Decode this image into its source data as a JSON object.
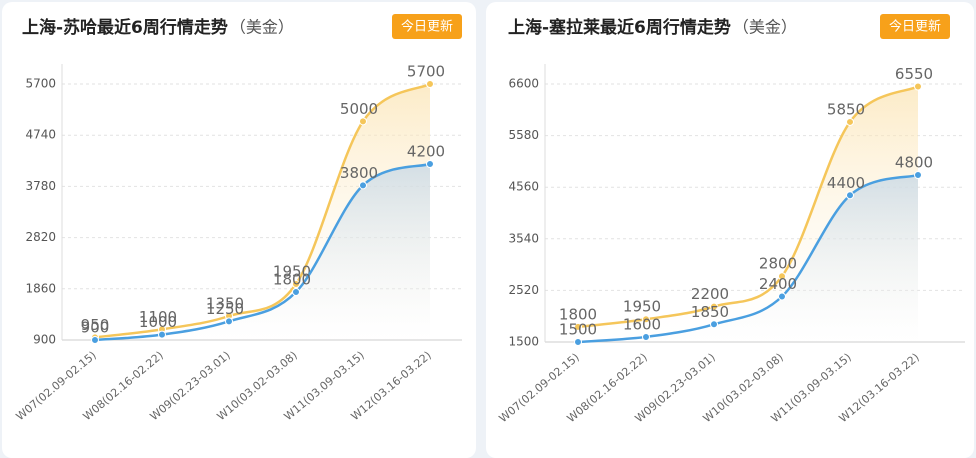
{
  "chart_data": [
    {
      "type": "line",
      "title": "上海-苏哈最近6周行情走势",
      "subtitle": "（美金）",
      "update_button": "今日更新",
      "categories": [
        "W07(02.09-02.15)",
        "W08(02.16-02.22)",
        "W09(02.23-03.01)",
        "W10(03.02-03.08)",
        "W11(03.09-03.15)",
        "W12(03.16-03.22)"
      ],
      "series": [
        {
          "color": "#f5c65a",
          "values": [
            950,
            1100,
            1350,
            1950,
            5000,
            5700
          ]
        },
        {
          "color": "#4a9fe0",
          "values": [
            900,
            1000,
            1250,
            1800,
            3800,
            4200
          ]
        }
      ],
      "ylim": [
        900,
        5700
      ],
      "yticks": [
        900,
        1860,
        2820,
        3780,
        4740,
        5700
      ],
      "grid": true
    },
    {
      "type": "line",
      "title": "上海-塞拉莱最近6周行情走势",
      "subtitle": "（美金）",
      "update_button": "今日更新",
      "categories": [
        "W07(02.09-02.15)",
        "W08(02.16-02.22)",
        "W09(02.23-03.01)",
        "W10(03.02-03.08)",
        "W11(03.09-03.15)",
        "W12(03.16-03.22)"
      ],
      "series": [
        {
          "color": "#f5c65a",
          "values": [
            1800,
            1950,
            2200,
            2800,
            5850,
            6550
          ]
        },
        {
          "color": "#4a9fe0",
          "values": [
            1500,
            1600,
            1850,
            2400,
            4400,
            4800
          ]
        }
      ],
      "ylim": [
        1500,
        6600
      ],
      "yticks": [
        1500,
        2520,
        3540,
        4560,
        5580,
        6600
      ],
      "grid": true
    }
  ]
}
